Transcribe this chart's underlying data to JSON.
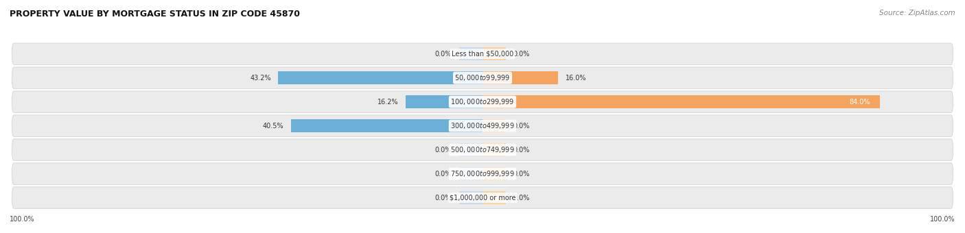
{
  "title": "PROPERTY VALUE BY MORTGAGE STATUS IN ZIP CODE 45870",
  "source": "Source: ZipAtlas.com",
  "categories": [
    "Less than $50,000",
    "$50,000 to $99,999",
    "$100,000 to $299,999",
    "$300,000 to $499,999",
    "$500,000 to $749,999",
    "$750,000 to $999,999",
    "$1,000,000 or more"
  ],
  "without_mortgage": [
    0.0,
    43.2,
    16.2,
    40.5,
    0.0,
    0.0,
    0.0
  ],
  "with_mortgage": [
    0.0,
    16.0,
    84.0,
    0.0,
    0.0,
    0.0,
    0.0
  ],
  "color_without": "#6baed6",
  "color_with": "#f4a460",
  "color_without_light": "#c6dbef",
  "color_with_light": "#fdd0a2",
  "row_bg_color": "#ebebeb",
  "row_bg_color_alt": "#f5f5f5",
  "title_fontsize": 9,
  "source_fontsize": 7.5,
  "label_fontsize": 7,
  "category_fontsize": 7,
  "legend_fontsize": 7.5,
  "axis_label_fontsize": 7,
  "xlim_left": -100,
  "xlim_right": 100,
  "left_label": "100.0%",
  "right_label": "100.0%",
  "stub_size": 5
}
